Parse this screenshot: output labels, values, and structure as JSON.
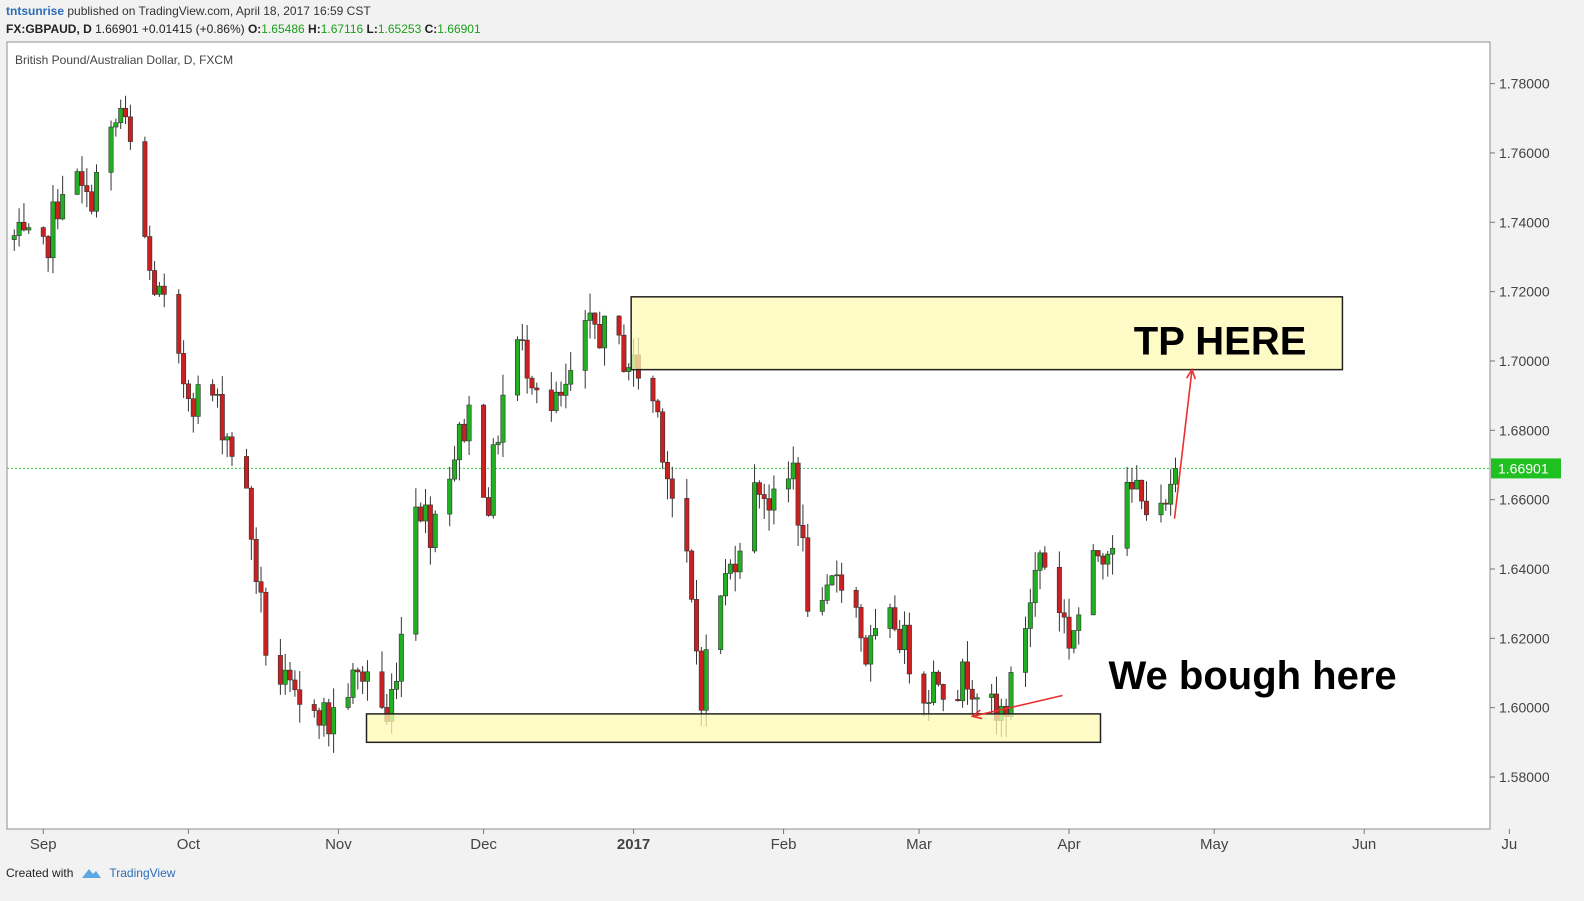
{
  "header": {
    "author": "tntsunrise",
    "published": " published on TradingView.com, April 18, 2017 16:59 CST",
    "symbol": "FX:GBPAUD, D",
    "last": "1.66901",
    "change": "+0.01415 (+0.86%)",
    "o_label": "O:",
    "o": "1.65486",
    "h_label": "H:",
    "h": "1.67116",
    "l_label": "L:",
    "l": "1.65253",
    "c_label": "C:",
    "c": "1.66901"
  },
  "footer": {
    "created": "Created with",
    "brand": "TradingView"
  },
  "colors": {
    "up": "#22b022",
    "down": "#cc1f1f",
    "zone_fill": "#fffab4",
    "arrow": "#e83030",
    "price_line": "#2ecc40",
    "price_badge": "#20c020"
  },
  "chart_data": {
    "type": "candlestick",
    "title": "British Pound/Australian Dollar, D, FXCM",
    "ylim": [
      1.565,
      1.792
    ],
    "y_ticks": [
      "1.78000",
      "1.76000",
      "1.74000",
      "1.72000",
      "1.70000",
      "1.68000",
      "1.66000",
      "1.64000",
      "1.62000",
      "1.60000",
      "1.58000"
    ],
    "x_ticks": [
      {
        "label": "Sep",
        "day": 0
      },
      {
        "label": "Oct",
        "day": 30
      },
      {
        "label": "Nov",
        "day": 61
      },
      {
        "label": "Dec",
        "day": 91
      },
      {
        "label": "2017",
        "day": 122,
        "bold": true
      },
      {
        "label": "Feb",
        "day": 153
      },
      {
        "label": "Mar",
        "day": 181
      },
      {
        "label": "Apr",
        "day": 212
      },
      {
        "label": "May",
        "day": 242
      },
      {
        "label": "Jun",
        "day": 273
      },
      {
        "label": "Ju",
        "day": 303
      }
    ],
    "x_range_days": [
      -7.5,
      299
    ],
    "last_price": 1.66901,
    "last_price_label": "1.66901",
    "anchors": [
      [
        -6,
        1.735
      ],
      [
        0,
        1.73
      ],
      [
        5,
        1.757
      ],
      [
        9,
        1.745
      ],
      [
        13,
        1.76
      ],
      [
        16,
        1.772
      ],
      [
        19,
        1.755
      ],
      [
        22,
        1.725
      ],
      [
        25,
        1.715
      ],
      [
        28,
        1.697
      ],
      [
        31,
        1.69
      ],
      [
        35,
        1.69
      ],
      [
        39,
        1.675
      ],
      [
        42,
        1.66
      ],
      [
        46,
        1.618
      ],
      [
        49,
        1.608
      ],
      [
        53,
        1.598
      ],
      [
        56,
        1.603
      ],
      [
        59,
        1.595
      ],
      [
        62,
        1.605
      ],
      [
        65,
        1.608
      ],
      [
        68,
        1.612
      ],
      [
        71,
        1.595
      ],
      [
        74,
        1.622
      ],
      [
        77,
        1.662
      ],
      [
        80,
        1.652
      ],
      [
        84,
        1.67
      ],
      [
        88,
        1.685
      ],
      [
        92,
        1.66
      ],
      [
        95,
        1.69
      ],
      [
        98,
        1.705
      ],
      [
        102,
        1.695
      ],
      [
        105,
        1.685
      ],
      [
        108,
        1.69
      ],
      [
        111,
        1.705
      ],
      [
        114,
        1.71
      ],
      [
        118,
        1.705
      ],
      [
        121,
        1.7
      ],
      [
        124,
        1.695
      ],
      [
        127,
        1.685
      ],
      [
        130,
        1.66
      ],
      [
        133,
        1.64
      ],
      [
        136,
        1.605
      ],
      [
        139,
        1.63
      ],
      [
        142,
        1.64
      ],
      [
        145,
        1.655
      ],
      [
        148,
        1.665
      ],
      [
        152,
        1.655
      ],
      [
        155,
        1.67
      ],
      [
        158,
        1.632
      ],
      [
        161,
        1.625
      ],
      [
        164,
        1.64
      ],
      [
        167,
        1.635
      ],
      [
        170,
        1.615
      ],
      [
        173,
        1.62
      ],
      [
        176,
        1.625
      ],
      [
        179,
        1.615
      ],
      [
        182,
        1.605
      ],
      [
        185,
        1.61
      ],
      [
        188,
        1.605
      ],
      [
        191,
        1.61
      ],
      [
        194,
        1.605
      ],
      [
        197,
        1.595
      ],
      [
        200,
        1.605
      ],
      [
        203,
        1.625
      ],
      [
        206,
        1.645
      ],
      [
        209,
        1.635
      ],
      [
        212,
        1.62
      ],
      [
        215,
        1.63
      ],
      [
        218,
        1.645
      ],
      [
        221,
        1.65
      ],
      [
        224,
        1.66
      ],
      [
        227,
        1.665
      ],
      [
        229,
        1.652
      ],
      [
        231,
        1.654
      ],
      [
        233,
        1.6595
      ],
      [
        234,
        1.669
      ]
    ],
    "zones": [
      {
        "name": "tp",
        "day_start": 121.5,
        "day_end": 268.5,
        "price_low": 1.6975,
        "price_high": 1.7185,
        "label": "TP HERE"
      },
      {
        "name": "buy",
        "day_start": 66.8,
        "day_end": 218.5,
        "price_low": 1.59,
        "price_high": 1.5982,
        "label": "We bough here"
      }
    ]
  }
}
